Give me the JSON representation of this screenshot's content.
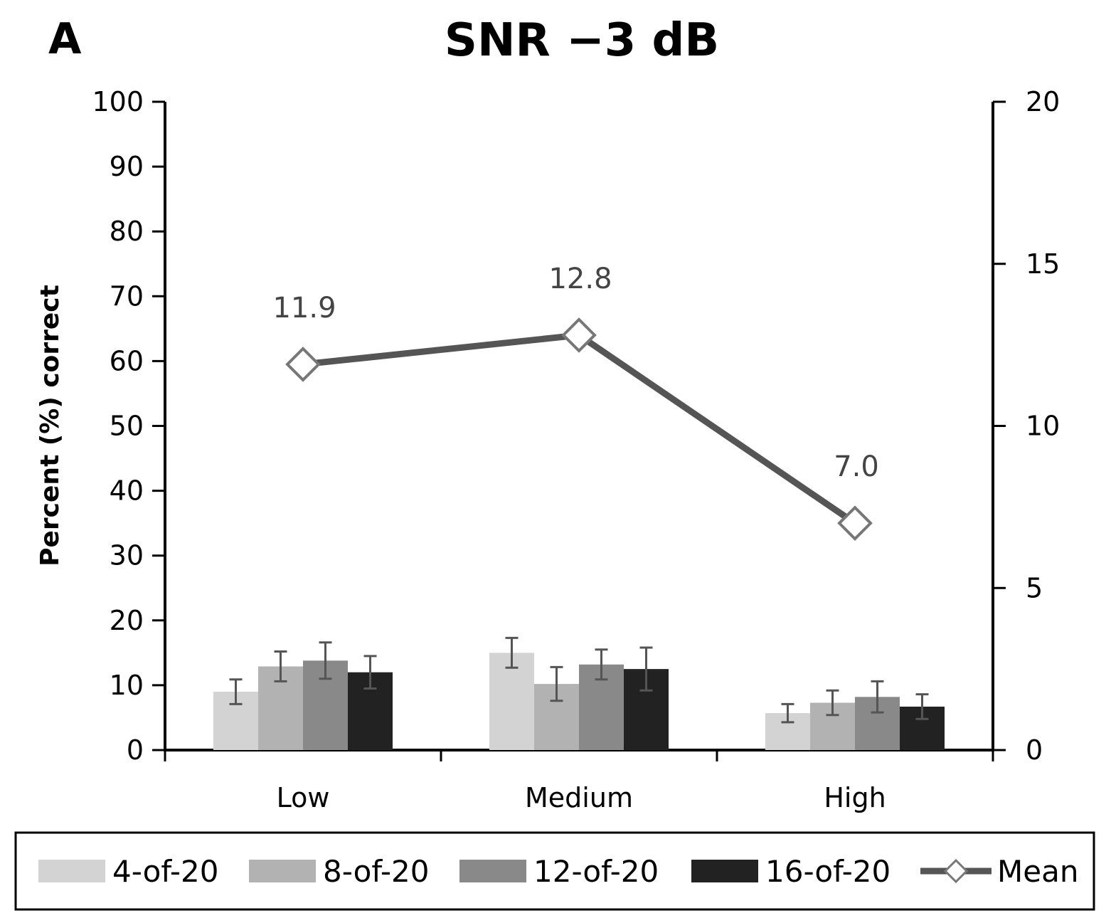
{
  "chart_data": {
    "type": "bar",
    "panel_label": "A",
    "title": "SNR −3 dB",
    "ylabel": "Percent (%) correct",
    "ylim": [
      0,
      100
    ],
    "yticks": [
      "0",
      "10",
      "20",
      "30",
      "40",
      "50",
      "60",
      "70",
      "80",
      "90",
      "100"
    ],
    "y2lim": [
      0,
      20
    ],
    "y2ticks": [
      "0",
      "5",
      "10",
      "15",
      "20"
    ],
    "categories": [
      "Low",
      "Medium",
      "High"
    ],
    "series": [
      {
        "name": "4-of-20",
        "color": "#d3d3d3",
        "values": [
          9.0,
          15.0,
          5.7
        ],
        "errors": [
          1.9,
          2.3,
          1.4
        ]
      },
      {
        "name": "8-of-20",
        "color": "#b2b2b2",
        "values": [
          12.9,
          10.2,
          7.3
        ],
        "errors": [
          2.3,
          2.6,
          1.9
        ]
      },
      {
        "name": "12-of-20",
        "color": "#898989",
        "values": [
          13.8,
          13.2,
          8.2
        ],
        "errors": [
          2.8,
          2.3,
          2.4
        ]
      },
      {
        "name": "16-of-20",
        "color": "#222222",
        "values": [
          12.0,
          12.5,
          6.7
        ],
        "errors": [
          2.5,
          3.3,
          1.9
        ]
      }
    ],
    "line_series": {
      "name": "Mean",
      "axis": "secondary",
      "color": "#555555",
      "marker": "diamond",
      "values": [
        11.9,
        12.8,
        7.0
      ],
      "labels": [
        "11.9",
        "12.8",
        "7.0"
      ]
    },
    "legend_position": "bottom"
  }
}
